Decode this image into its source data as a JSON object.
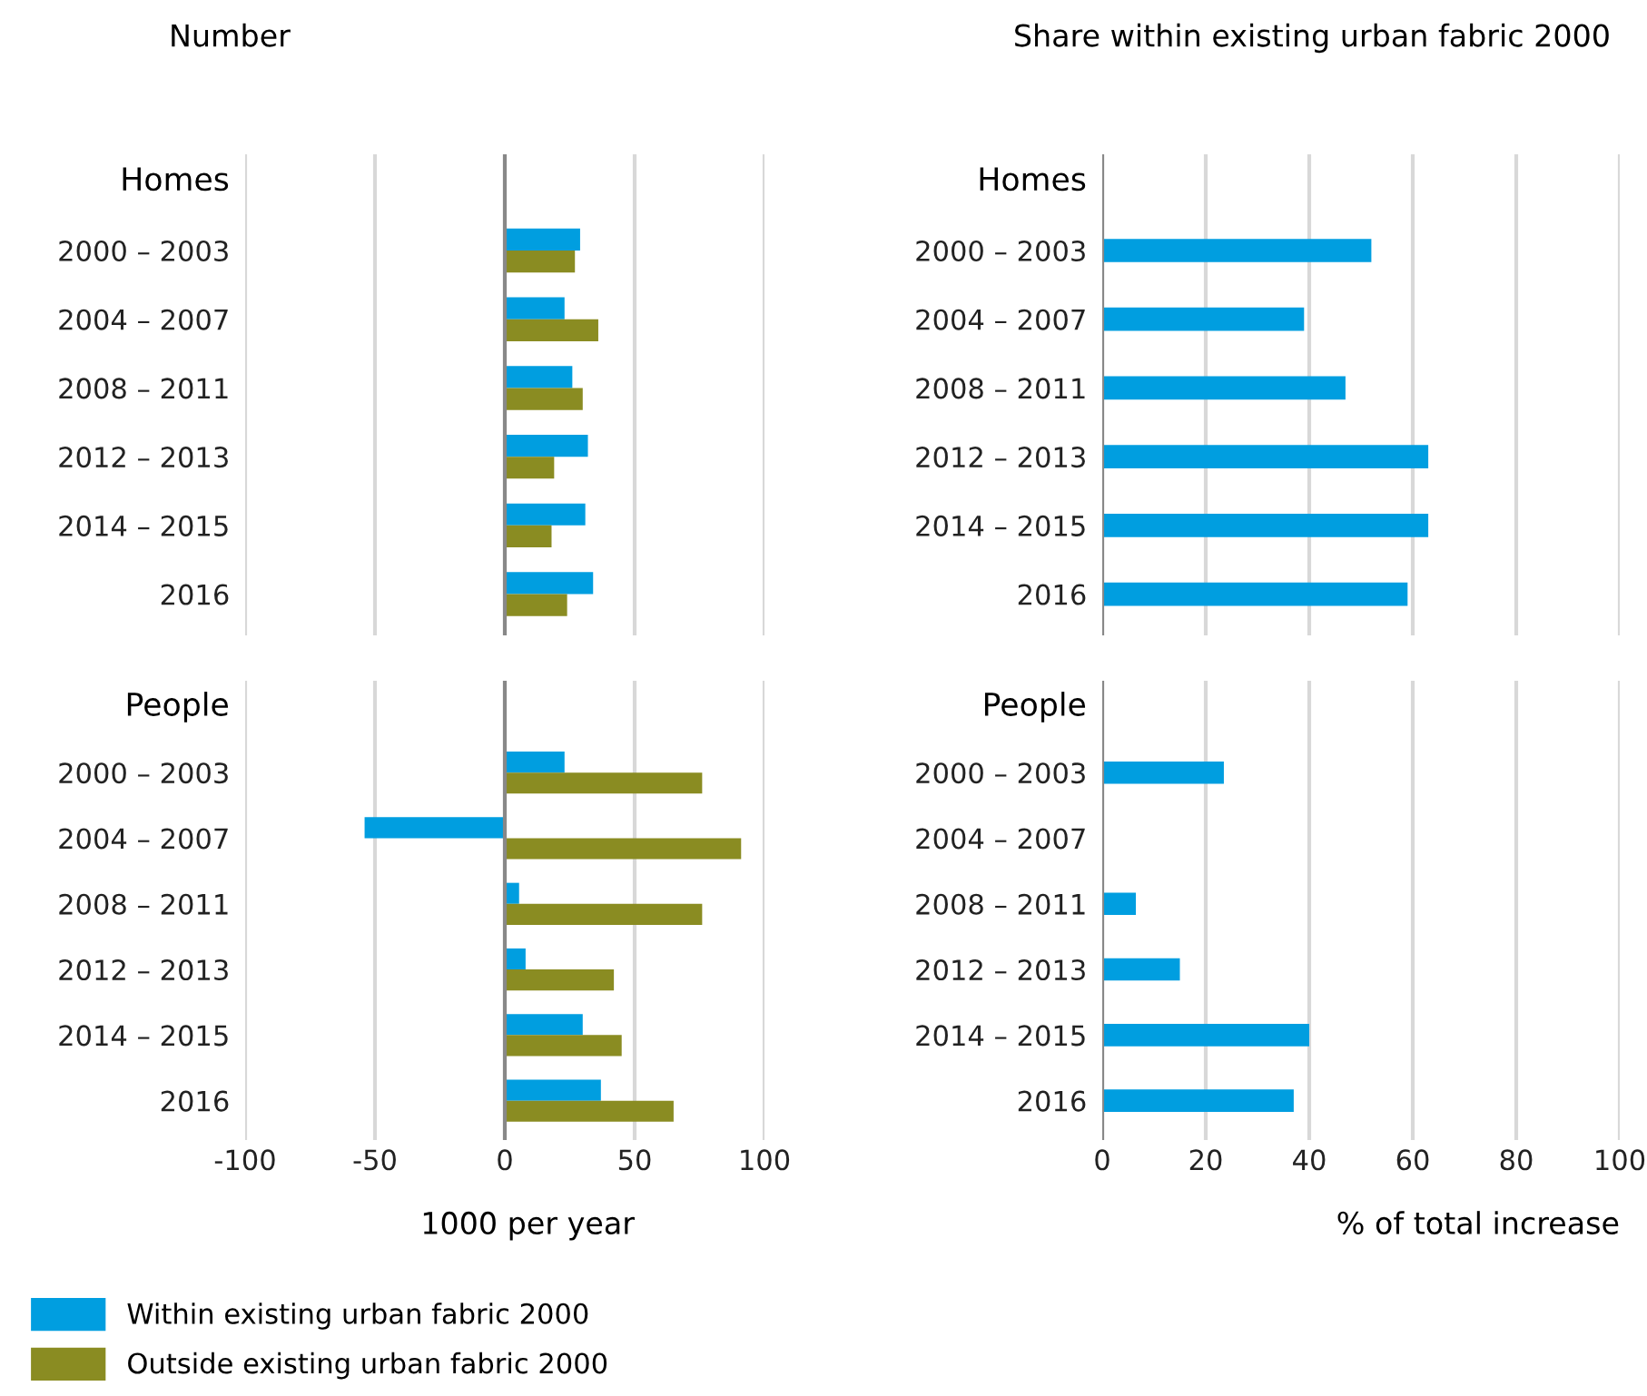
{
  "chart_data": [
    {
      "type": "bar",
      "orientation": "horizontal",
      "title": "Number",
      "subtitle": "Homes",
      "categories": [
        "2000 – 2003",
        "2004 – 2007",
        "2008 – 2011",
        "2012 – 2013",
        "2014 – 2015",
        "2016"
      ],
      "series": [
        {
          "name": "Within existing urban fabric 2000",
          "color": "#009ee0",
          "values": [
            29,
            23,
            26,
            32,
            31,
            34
          ]
        },
        {
          "name": "Outside existing urban fabric 2000",
          "color": "#8a8c22",
          "values": [
            27,
            36,
            30,
            19,
            18,
            24
          ]
        }
      ],
      "xlim": [
        -100,
        100
      ],
      "xticks": [
        -100,
        -50,
        0,
        50,
        100
      ],
      "grid": "x",
      "tick_labels": "y",
      "legend": "bottom"
    },
    {
      "type": "bar",
      "orientation": "horizontal",
      "subtitle": "People",
      "xlabel": "1000 per year",
      "categories": [
        "2000 – 2003",
        "2004 – 2007",
        "2008 – 2011",
        "2012 – 2013",
        "2014 – 2015",
        "2016"
      ],
      "series": [
        {
          "color": "#009ee0",
          "values": [
            23,
            -54,
            5.5,
            8,
            30,
            37
          ]
        },
        {
          "color": "#8a8c22",
          "values": [
            76,
            91,
            76,
            42,
            45,
            65
          ]
        }
      ],
      "xlim": [
        -100,
        100
      ],
      "xticks": [
        -100,
        -50,
        0,
        50,
        100
      ],
      "grid": "x"
    },
    {
      "type": "bar",
      "orientation": "horizontal",
      "title": "Share within existing urban fabric 2000",
      "subtitle": "Homes",
      "categories": [
        "2000 – 2003",
        "2004 – 2007",
        "2008 – 2011",
        "2012 – 2013",
        "2014 – 2015",
        "2016"
      ],
      "series": [
        {
          "color": "#009ee0",
          "values": [
            52,
            39,
            47,
            63,
            63,
            59
          ]
        }
      ],
      "xlim": [
        0,
        100
      ],
      "xticks": [
        0,
        20,
        40,
        60,
        80,
        100
      ],
      "grid": "x",
      "tick_labels": "y"
    },
    {
      "type": "bar",
      "orientation": "horizontal",
      "subtitle": "People",
      "xlabel": "% of total increase",
      "categories": [
        "2000 – 2003",
        "2004 – 2007",
        "2008 – 2011",
        "2012 – 2013",
        "2014 – 2015",
        "2016"
      ],
      "series": [
        {
          "color": "#009ee0",
          "values": [
            23.5,
            null,
            6.5,
            15,
            40,
            37
          ]
        }
      ],
      "xlim": [
        0,
        100
      ],
      "xticks": [
        0,
        20,
        40,
        60,
        80,
        100
      ],
      "grid": "x"
    }
  ]
}
